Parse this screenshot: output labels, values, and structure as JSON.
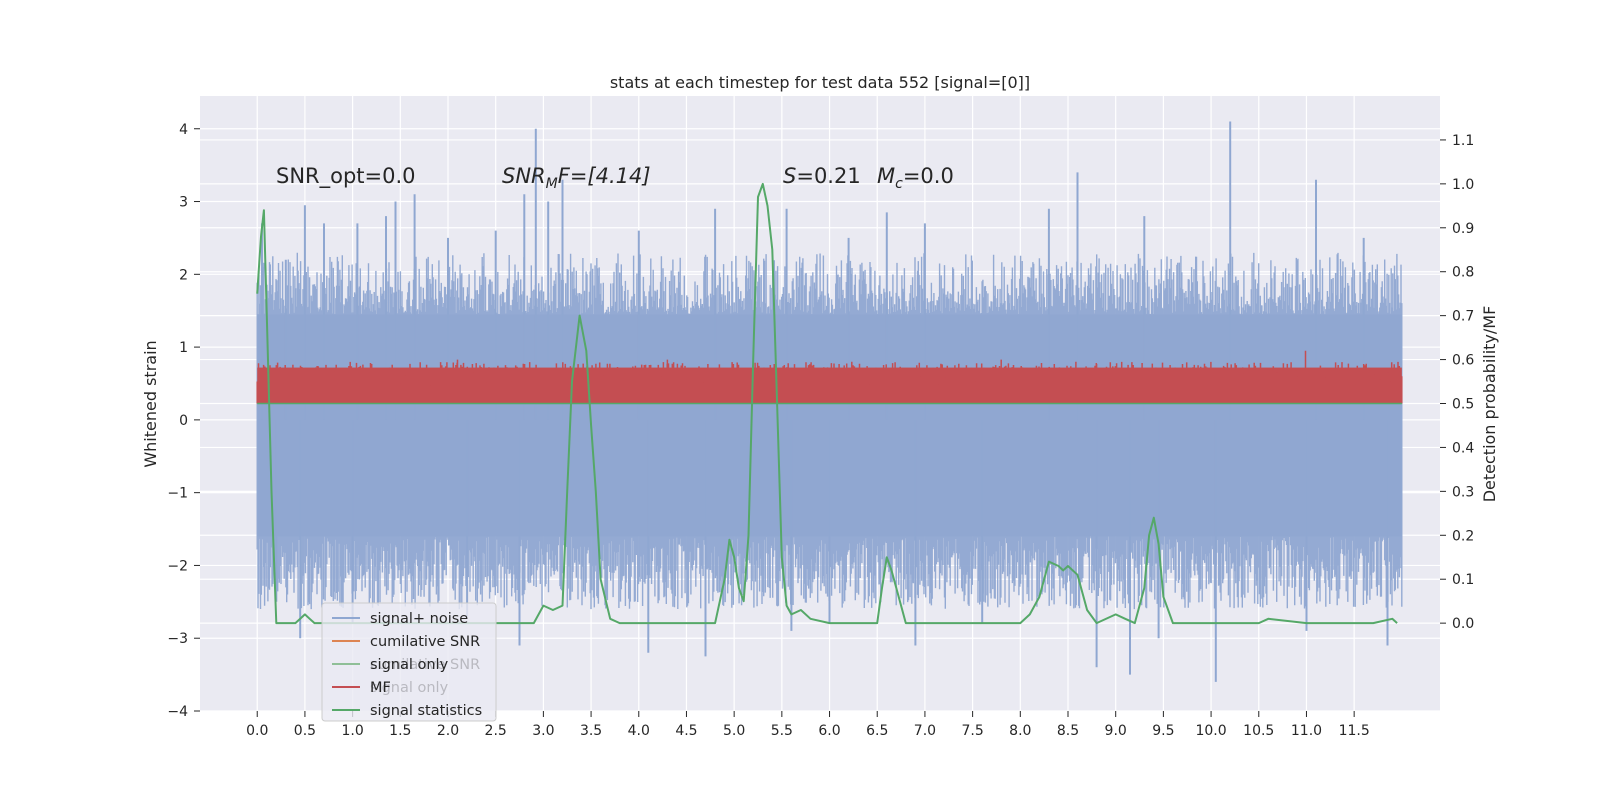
{
  "chart_data": {
    "type": "line",
    "title": "stats at each timestep for test data 552 [signal=[0]]",
    "xlabel": "",
    "ylabel": "Whitened strain",
    "ylabel_right": "Detection probability/MF",
    "xlim": [
      -0.6,
      12.4
    ],
    "ylim": [
      -4,
      4.45
    ],
    "ylim_right": [
      -0.2,
      1.2
    ],
    "x_ticks": [
      "0.0",
      "0.5",
      "1.0",
      "1.5",
      "2.0",
      "2.5",
      "3.0",
      "3.5",
      "4.0",
      "4.5",
      "5.0",
      "5.5",
      "6.0",
      "6.5",
      "7.0",
      "7.5",
      "8.0",
      "8.5",
      "9.0",
      "9.5",
      "10.0",
      "10.5",
      "11.0",
      "11.5"
    ],
    "y_ticks": [
      "4",
      "3",
      "2",
      "1",
      "0",
      "−1",
      "−2",
      "−3",
      "−4"
    ],
    "y_ticks_right": [
      "1.1",
      "1.0",
      "0.9",
      "0.8",
      "0.7",
      "0.6",
      "0.5",
      "0.4",
      "0.3",
      "0.2",
      "0.1",
      "0.0"
    ],
    "grid": true,
    "legend_position": "lower-left",
    "annotations": {
      "snr_opt": "SNR_opt=0.0",
      "snr_mf": "SNRₘF=[4.14]",
      "snr_mf_parts": {
        "base": "SNR",
        "sub": "M",
        "rest": "F=[4.14]"
      },
      "s_value": "S=0.21",
      "mc_value": "Mᶜ=0.0",
      "s_parts": {
        "var": "S",
        "rest": "=0.21"
      },
      "mc_parts": {
        "var": "M",
        "sub": "c",
        "rest": "=0.0"
      }
    },
    "series": [
      {
        "name": "signal+ noise",
        "color": "#8fa7d1",
        "description_envelope": {
          "upper": [
            1.45,
            2.3,
            4.0
          ],
          "lower": [
            -1.6,
            -2.6,
            -3.6
          ]
        },
        "peaks": [
          [
            0.05,
            2.7
          ],
          [
            0.3,
            2.2
          ],
          [
            0.5,
            2.95
          ],
          [
            0.7,
            2.7
          ],
          [
            1.05,
            2.7
          ],
          [
            1.35,
            2.8
          ],
          [
            1.45,
            3.0
          ],
          [
            1.65,
            3.1
          ],
          [
            2.0,
            2.5
          ],
          [
            2.5,
            2.6
          ],
          [
            2.8,
            3.1
          ],
          [
            2.92,
            4.0
          ],
          [
            3.05,
            3.0
          ],
          [
            3.2,
            3.3
          ],
          [
            4.0,
            2.6
          ],
          [
            4.8,
            2.9
          ],
          [
            5.55,
            2.9
          ],
          [
            6.2,
            2.5
          ],
          [
            6.6,
            2.85
          ],
          [
            7.0,
            2.7
          ],
          [
            8.3,
            2.9
          ],
          [
            8.6,
            3.4
          ],
          [
            9.3,
            2.8
          ],
          [
            10.2,
            4.1
          ],
          [
            11.1,
            3.3
          ],
          [
            11.6,
            2.5
          ]
        ],
        "troughs": [
          [
            0.2,
            -2.5
          ],
          [
            0.45,
            -3.0
          ],
          [
            1.0,
            -2.8
          ],
          [
            2.2,
            -2.7
          ],
          [
            2.75,
            -3.1
          ],
          [
            4.1,
            -3.2
          ],
          [
            4.7,
            -3.25
          ],
          [
            5.6,
            -2.9
          ],
          [
            6.0,
            -2.8
          ],
          [
            6.9,
            -3.1
          ],
          [
            7.6,
            -2.8
          ],
          [
            8.8,
            -3.4
          ],
          [
            9.15,
            -3.5
          ],
          [
            9.45,
            -3.0
          ],
          [
            10.05,
            -3.6
          ],
          [
            11.0,
            -2.9
          ],
          [
            11.85,
            -3.1
          ]
        ]
      },
      {
        "name": "cumilative SNR",
        "color": "#dd8452",
        "values": []
      },
      {
        "name": "signal only",
        "color": "#55a868",
        "values": []
      },
      {
        "name": "MF",
        "color": "#c44e52",
        "axis": "right",
        "band": [
          0.5,
          0.6
        ],
        "spikes": [
          [
            0.0,
            0.55
          ],
          [
            0.55,
            0.58
          ],
          [
            1.2,
            0.59
          ],
          [
            2.1,
            0.6
          ],
          [
            3.4,
            0.58
          ],
          [
            4.3,
            0.6
          ],
          [
            5.3,
            0.58
          ],
          [
            6.1,
            0.59
          ],
          [
            6.9,
            0.58
          ],
          [
            7.8,
            0.6
          ],
          [
            8.8,
            0.59
          ],
          [
            9.7,
            0.59
          ],
          [
            10.99,
            0.62
          ],
          [
            11.6,
            0.59
          ]
        ]
      },
      {
        "name": "signal only",
        "color": "#aaaaaa",
        "values": []
      },
      {
        "name": "signal statistics",
        "color": "#55a868",
        "axis": "right",
        "x": [
          0.0,
          0.04,
          0.07,
          0.1,
          0.15,
          0.2,
          0.3,
          0.4,
          0.45,
          0.5,
          0.55,
          0.6,
          0.7,
          0.8,
          1.0,
          1.5,
          2.0,
          2.5,
          2.8,
          2.9,
          3.0,
          3.1,
          3.2,
          3.25,
          3.3,
          3.38,
          3.45,
          3.5,
          3.55,
          3.6,
          3.7,
          3.8,
          4.0,
          4.5,
          4.7,
          4.8,
          4.9,
          4.95,
          5.0,
          5.05,
          5.1,
          5.15,
          5.2,
          5.25,
          5.3,
          5.35,
          5.4,
          5.45,
          5.5,
          5.55,
          5.6,
          5.7,
          5.8,
          6.0,
          6.5,
          6.55,
          6.6,
          6.65,
          6.7,
          6.8,
          7.0,
          7.5,
          8.0,
          8.1,
          8.2,
          8.3,
          8.4,
          8.45,
          8.5,
          8.6,
          8.7,
          8.8,
          9.0,
          9.1,
          9.2,
          9.3,
          9.35,
          9.4,
          9.45,
          9.5,
          9.6,
          9.8,
          10.2,
          10.5,
          10.6,
          11.0,
          11.5,
          11.7,
          11.9,
          11.95
        ],
        "y": [
          0.75,
          0.88,
          0.94,
          0.7,
          0.3,
          0.0,
          0.0,
          0.0,
          0.01,
          0.02,
          0.01,
          0.0,
          0.0,
          0.0,
          0.0,
          0.0,
          0.0,
          0.0,
          0.0,
          0.0,
          0.04,
          0.03,
          0.04,
          0.3,
          0.55,
          0.7,
          0.62,
          0.45,
          0.3,
          0.1,
          0.01,
          0.0,
          0.0,
          0.0,
          0.0,
          0.0,
          0.1,
          0.19,
          0.15,
          0.08,
          0.05,
          0.2,
          0.6,
          0.97,
          1.0,
          0.95,
          0.85,
          0.5,
          0.15,
          0.04,
          0.02,
          0.03,
          0.01,
          0.0,
          0.0,
          0.08,
          0.15,
          0.12,
          0.08,
          0.0,
          0.0,
          0.0,
          0.0,
          0.02,
          0.06,
          0.14,
          0.13,
          0.12,
          0.13,
          0.11,
          0.03,
          0.0,
          0.02,
          0.01,
          0.0,
          0.08,
          0.2,
          0.24,
          0.18,
          0.06,
          0.0,
          0.0,
          0.0,
          0.0,
          0.01,
          0.0,
          0.0,
          0.0,
          0.01,
          0.0
        ]
      }
    ]
  }
}
